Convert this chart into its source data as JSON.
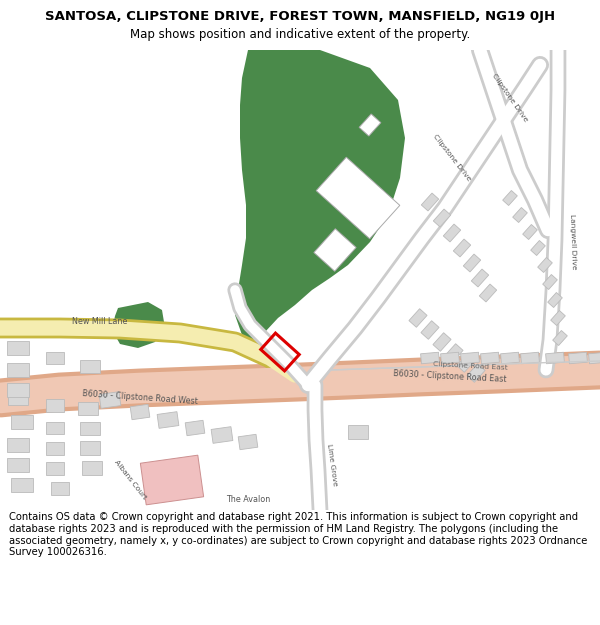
{
  "title_line1": "SANTOSA, CLIPSTONE DRIVE, FOREST TOWN, MANSFIELD, NG19 0JH",
  "title_line2": "Map shows position and indicative extent of the property.",
  "footer_text": "Contains OS data © Crown copyright and database right 2021. This information is subject to Crown copyright and database rights 2023 and is reproduced with the permission of HM Land Registry. The polygons (including the associated geometry, namely x, y co-ordinates) are subject to Crown copyright and database rights 2023 Ordnance Survey 100026316.",
  "map_bg": "#f5f5f2",
  "road_main_fill": "#f0c8b4",
  "road_main_outline": "#e0a888",
  "road_minor_fill": "#ffffff",
  "road_minor_outline": "#cccccc",
  "green_dark": "#4a8a4a",
  "building_fill": "#d8d8d8",
  "building_outline": "#bbbbbb",
  "building_white": "#ffffff",
  "building_white_outline": "#aaaaaa",
  "pink_fill": "#f0c0c0",
  "pink_outline": "#cc9090",
  "highlight_red": "#dd0000",
  "yellow_fill": "#f5edb0",
  "yellow_outline": "#c8b840",
  "text_dark": "#333333",
  "text_road": "#555555",
  "title_fontsize": 9.5,
  "subtitle_fontsize": 8.5,
  "footer_fontsize": 7.2,
  "road_label_fontsize": 5.8,
  "small_label_fontsize": 5.4
}
